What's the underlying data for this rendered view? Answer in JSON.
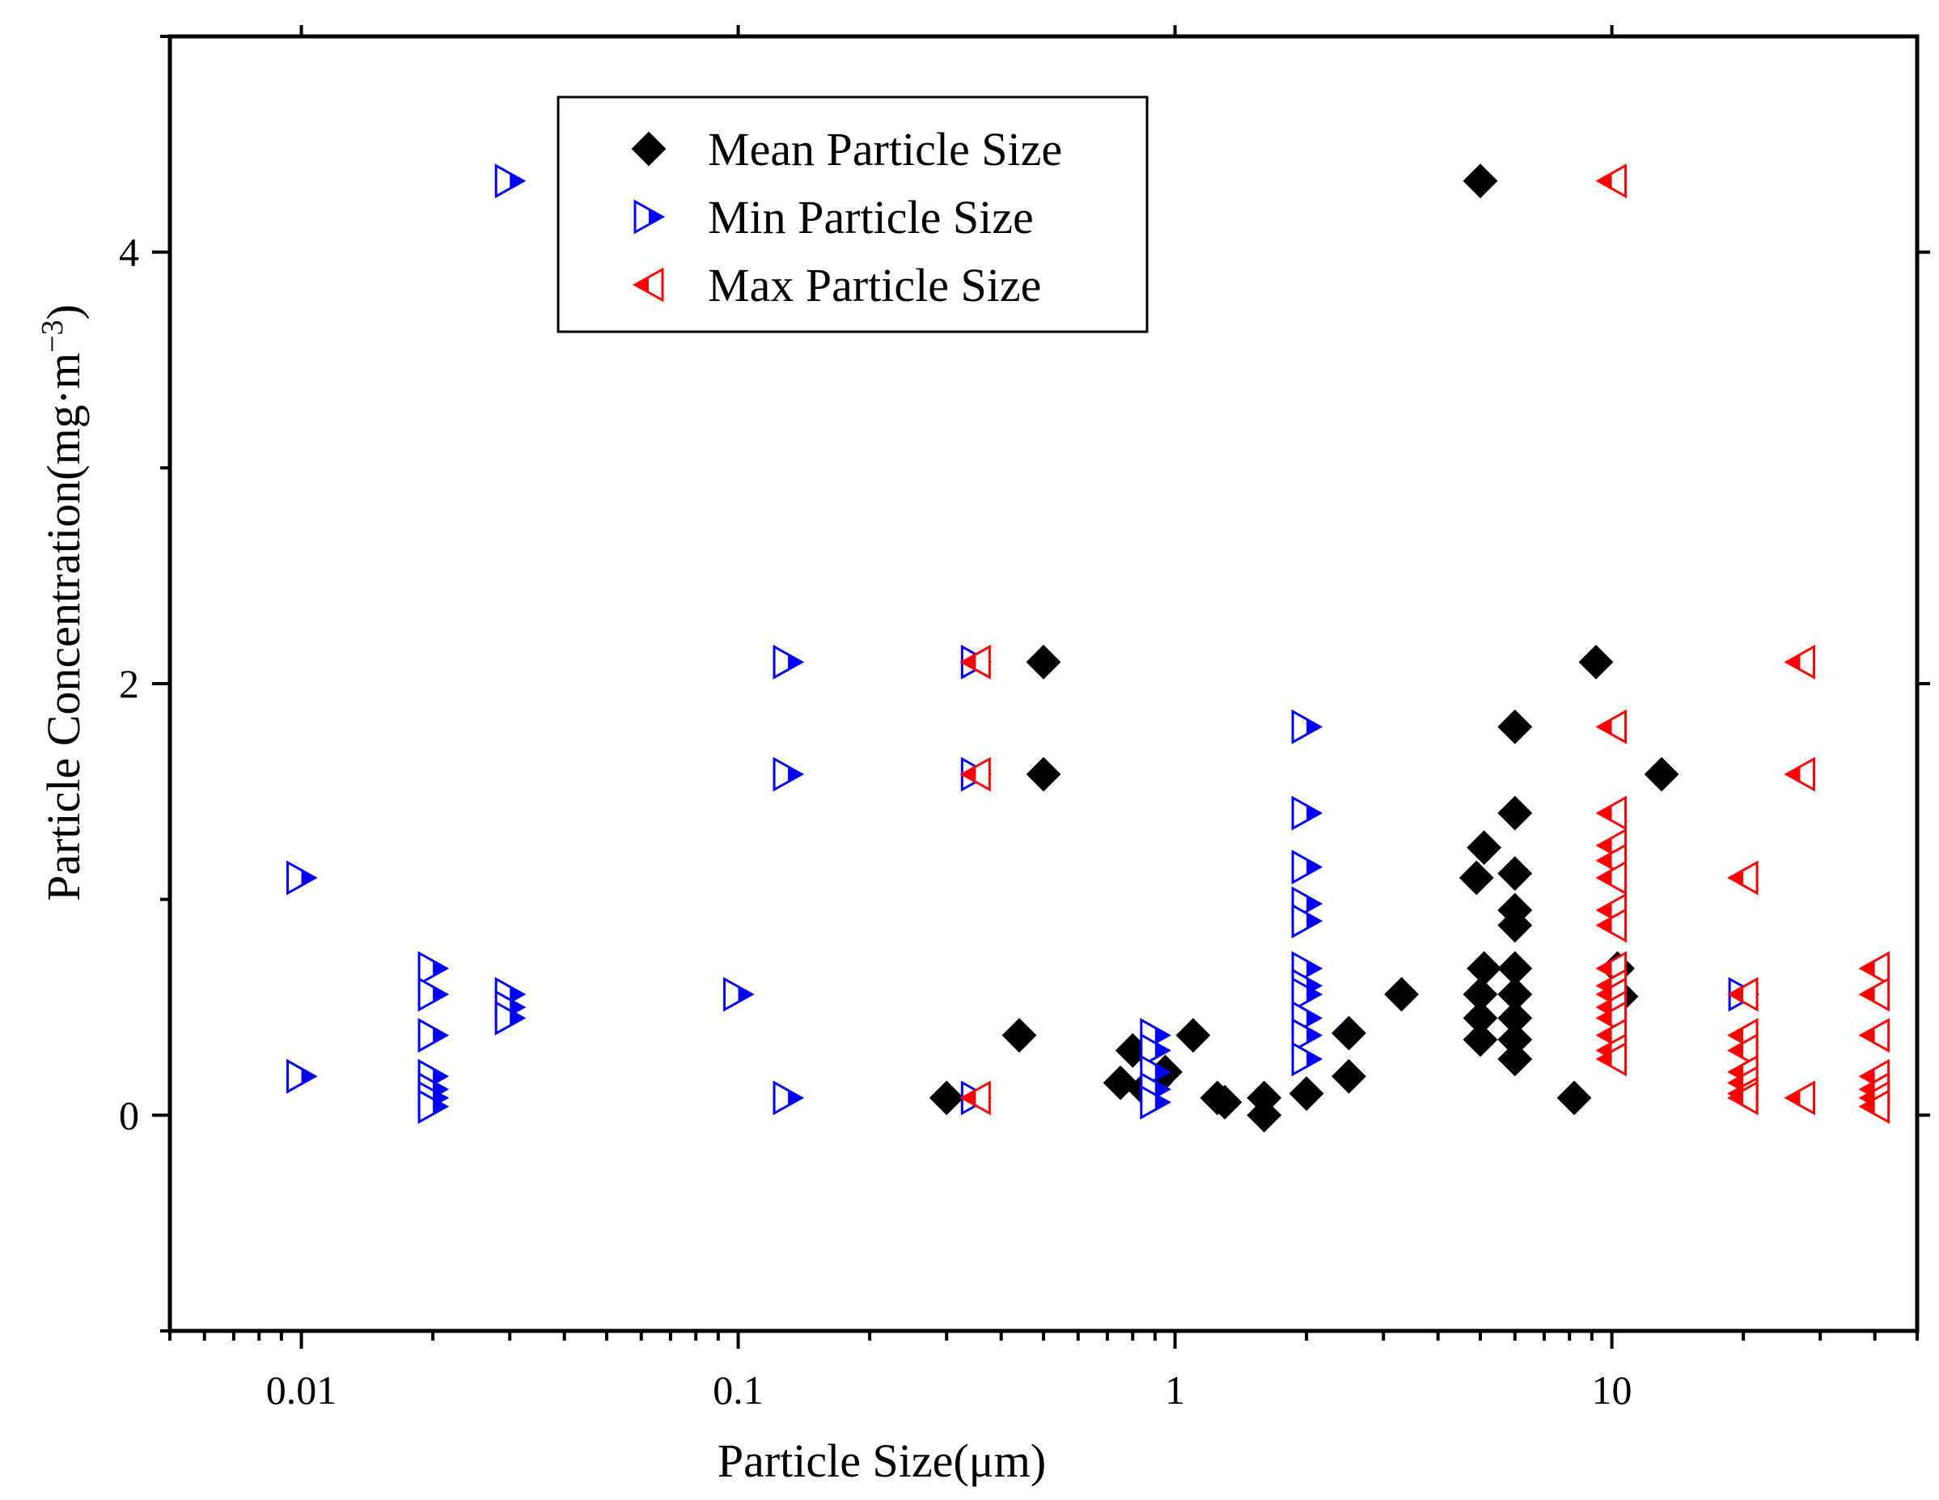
{
  "chart_data": {
    "type": "scatter",
    "xscale": "log",
    "xlim": [
      0.005,
      50
    ],
    "ylim": [
      -1,
      5
    ],
    "xlabel": "Particle Size(μm)",
    "ylabel": "Particle Concentration(mg·m",
    "ylabel_superscript": "−3",
    "ylabel_close": ")",
    "x_ticks": [
      {
        "value": 0.01,
        "label": "0.01"
      },
      {
        "value": 0.1,
        "label": "0.1"
      },
      {
        "value": 1,
        "label": "1"
      },
      {
        "value": 10,
        "label": "10"
      }
    ],
    "y_ticks": [
      {
        "value": 0,
        "label": "0"
      },
      {
        "value": 2,
        "label": "2"
      },
      {
        "value": 4,
        "label": "4"
      }
    ],
    "grid": false,
    "legend_position": "top-center",
    "series": [
      {
        "name": "Mean Particle Size",
        "marker": "diamond",
        "color": "#000000",
        "points": [
          [
            5.0,
            4.33
          ],
          [
            0.5,
            2.1
          ],
          [
            0.5,
            1.58
          ],
          [
            9.2,
            2.1
          ],
          [
            13,
            1.58
          ],
          [
            6.0,
            1.8
          ],
          [
            6.0,
            1.4
          ],
          [
            5.1,
            1.24
          ],
          [
            4.9,
            1.1
          ],
          [
            6.0,
            1.12
          ],
          [
            6.0,
            0.95
          ],
          [
            6.0,
            0.88
          ],
          [
            5.1,
            0.68
          ],
          [
            6.0,
            0.68
          ],
          [
            5.0,
            0.56
          ],
          [
            6.0,
            0.56
          ],
          [
            5.0,
            0.45
          ],
          [
            6.0,
            0.45
          ],
          [
            5.0,
            0.35
          ],
          [
            6.0,
            0.35
          ],
          [
            6.0,
            0.26
          ],
          [
            3.3,
            0.56
          ],
          [
            2.5,
            0.38
          ],
          [
            2.5,
            0.18
          ],
          [
            2.0,
            0.1
          ],
          [
            1.6,
            0.0
          ],
          [
            1.6,
            0.08
          ],
          [
            1.3,
            0.06
          ],
          [
            1.25,
            0.08
          ],
          [
            1.1,
            0.37
          ],
          [
            0.95,
            0.2
          ],
          [
            0.9,
            0.15
          ],
          [
            0.85,
            0.12
          ],
          [
            0.8,
            0.3
          ],
          [
            0.75,
            0.15
          ],
          [
            0.44,
            0.37
          ],
          [
            0.3,
            0.08
          ],
          [
            8.2,
            0.08
          ],
          [
            10.3,
            0.68
          ],
          [
            10.5,
            0.55
          ]
        ]
      },
      {
        "name": "Min Particle Size",
        "marker": "triangle-right",
        "color": "#0000ff",
        "points": [
          [
            0.03,
            4.33
          ],
          [
            0.13,
            2.1
          ],
          [
            0.13,
            1.58
          ],
          [
            0.13,
            0.08
          ],
          [
            0.1,
            0.56
          ],
          [
            0.35,
            2.1
          ],
          [
            0.35,
            1.58
          ],
          [
            0.35,
            0.08
          ],
          [
            0.01,
            1.1
          ],
          [
            0.01,
            0.18
          ],
          [
            0.02,
            0.68
          ],
          [
            0.02,
            0.56
          ],
          [
            0.02,
            0.37
          ],
          [
            0.02,
            0.18
          ],
          [
            0.02,
            0.12
          ],
          [
            0.02,
            0.08
          ],
          [
            0.02,
            0.04
          ],
          [
            0.03,
            0.56
          ],
          [
            0.03,
            0.5
          ],
          [
            0.03,
            0.45
          ],
          [
            0.9,
            0.37
          ],
          [
            0.9,
            0.3
          ],
          [
            0.9,
            0.2
          ],
          [
            0.9,
            0.12
          ],
          [
            0.9,
            0.06
          ],
          [
            2.0,
            1.8
          ],
          [
            2.0,
            1.4
          ],
          [
            2.0,
            1.15
          ],
          [
            2.0,
            0.98
          ],
          [
            2.0,
            0.9
          ],
          [
            2.0,
            0.68
          ],
          [
            2.0,
            0.6
          ],
          [
            2.0,
            0.56
          ],
          [
            2.0,
            0.45
          ],
          [
            2.0,
            0.37
          ],
          [
            2.0,
            0.26
          ],
          [
            20,
            0.56
          ]
        ]
      },
      {
        "name": "Max Particle Size",
        "marker": "triangle-left",
        "color": "#ff0000",
        "points": [
          [
            10,
            4.33
          ],
          [
            0.35,
            2.1
          ],
          [
            0.35,
            1.58
          ],
          [
            0.35,
            0.08
          ],
          [
            10,
            1.8
          ],
          [
            10,
            1.4
          ],
          [
            10,
            1.25
          ],
          [
            10,
            1.18
          ],
          [
            10,
            1.1
          ],
          [
            10,
            0.95
          ],
          [
            10,
            0.88
          ],
          [
            10,
            0.68
          ],
          [
            10,
            0.6
          ],
          [
            10,
            0.56
          ],
          [
            10,
            0.5
          ],
          [
            10,
            0.45
          ],
          [
            10,
            0.37
          ],
          [
            10,
            0.3
          ],
          [
            10,
            0.26
          ],
          [
            20,
            1.1
          ],
          [
            20,
            0.56
          ],
          [
            20,
            0.37
          ],
          [
            20,
            0.3
          ],
          [
            20,
            0.2
          ],
          [
            20,
            0.15
          ],
          [
            20,
            0.1
          ],
          [
            20,
            0.08
          ],
          [
            27,
            2.1
          ],
          [
            27,
            1.58
          ],
          [
            27,
            0.08
          ],
          [
            40,
            0.68
          ],
          [
            40,
            0.56
          ],
          [
            40,
            0.37
          ],
          [
            40,
            0.18
          ],
          [
            40,
            0.12
          ],
          [
            40,
            0.08
          ],
          [
            40,
            0.04
          ]
        ]
      }
    ]
  }
}
